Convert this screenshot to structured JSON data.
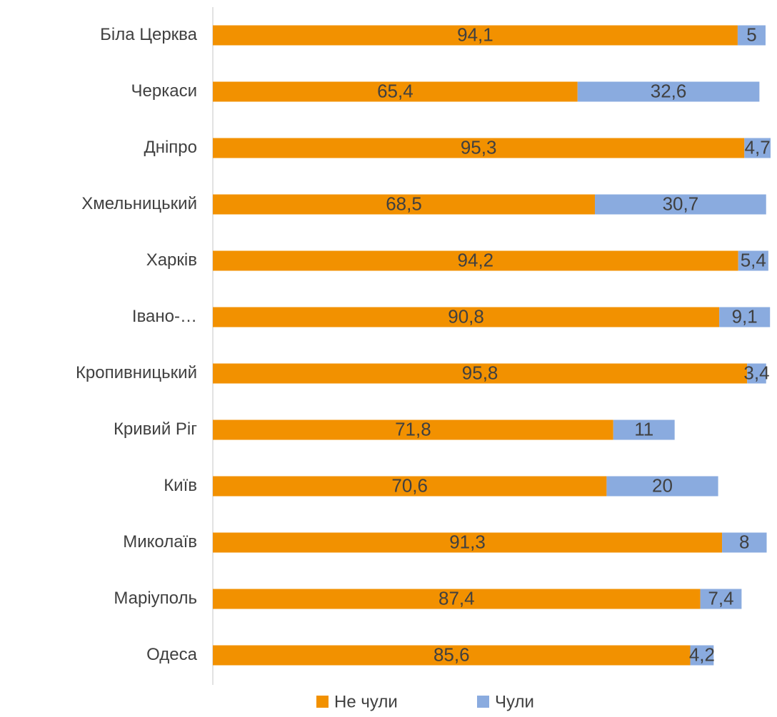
{
  "chart_data": {
    "type": "stacked_barh",
    "categories": [
      "Біла Церква",
      "Черкаси",
      "Дніпро",
      "Хмельницький",
      "Харків",
      "Івано-…",
      "Кропивницький",
      "Кривий Ріг",
      "Київ",
      "Миколаїв",
      "Маріуполь",
      "Одеса"
    ],
    "series": [
      {
        "name": "Не чули",
        "color": "#f29100",
        "values": [
          94.1,
          65.4,
          95.3,
          68.5,
          94.2,
          90.8,
          95.8,
          71.8,
          70.6,
          91.3,
          87.4,
          85.6
        ],
        "value_labels": [
          "94,1",
          "65,4",
          "95,3",
          "68,5",
          "94,2",
          "90,8",
          "95,8",
          "71,8",
          "70,6",
          "91,3",
          "87,4",
          "85,6"
        ]
      },
      {
        "name": "Чули",
        "color": "#8aabdf",
        "values": [
          5,
          32.6,
          4.7,
          30.7,
          5.4,
          9.1,
          3.4,
          11,
          20,
          8,
          7.4,
          4.2
        ],
        "value_labels": [
          "5",
          "32,6",
          "4,7",
          "30,7",
          "5,4",
          "9,1",
          "3,4",
          "11",
          "20",
          "8",
          "7,4",
          "4,2"
        ]
      }
    ],
    "xlim": [
      0,
      100
    ],
    "legend": "bottom"
  }
}
